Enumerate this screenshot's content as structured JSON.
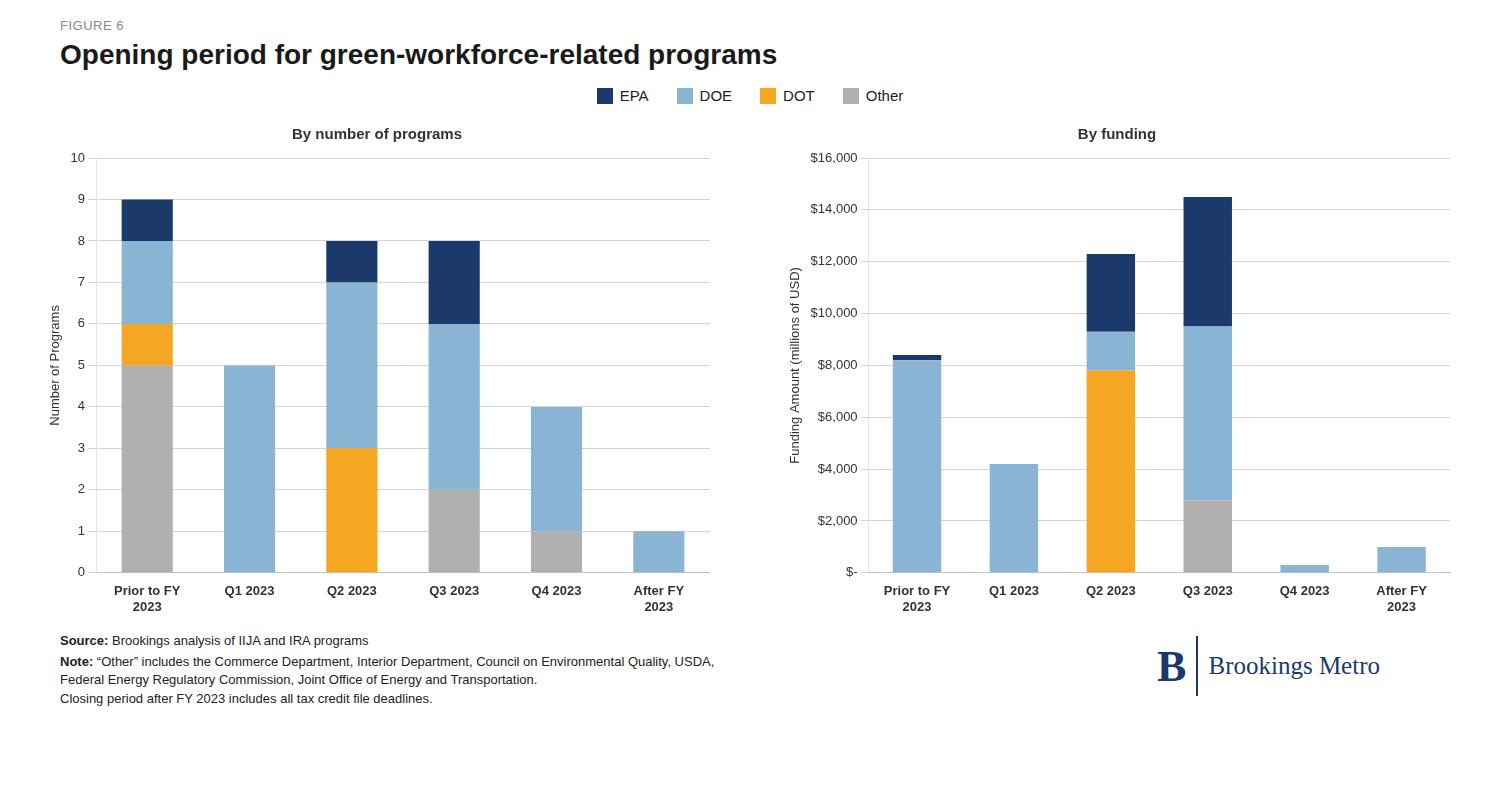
{
  "title": "Opening period for green-workforce-related programs",
  "annotations": [
    "FIGURE 6",
    "Source: Brookings analysis of IIJA and IRA programs",
    "Note: “Other” includes the Commerce Department, Interior Department, Council on Environmental Quality, USDA,\nFederal Energy Regulatory Commission, Joint Office of Energy and Transportation.\nClosing period after FY 2023 includes all tax credit file deadlines.",
    "B",
    "Brookings Metro"
  ],
  "legend": "top",
  "chart_data": [
    {
      "type": "bar",
      "title": "By number of programs",
      "categories": [
        "Prior to FY\n2023",
        "Q1 2023",
        "Q2 2023",
        "Q3 2023",
        "Q4 2023",
        "After FY\n2023"
      ],
      "series": [
        {
          "name": "Other",
          "color": "#b0b0b0",
          "values": [
            5,
            0,
            0,
            2,
            1,
            0
          ]
        },
        {
          "name": "DOT",
          "color": "#f5a623",
          "values": [
            1,
            0,
            3,
            0,
            0,
            0
          ]
        },
        {
          "name": "DOE",
          "color": "#8ab4d4",
          "values": [
            2,
            5,
            4,
            4,
            3,
            1
          ]
        },
        {
          "name": "EPA",
          "color": "#1b3a6b",
          "values": [
            1,
            0,
            1,
            2,
            0,
            0
          ]
        }
      ],
      "y_label": "Number of Programs",
      "ylim": [
        0,
        10
      ],
      "yticks": [
        0,
        1,
        2,
        3,
        4,
        5,
        6,
        7,
        8,
        9,
        10
      ],
      "stacked": true,
      "grid": true
    },
    {
      "type": "bar",
      "title": "By funding",
      "categories": [
        "Prior to FY\n2023",
        "Q1 2023",
        "Q2 2023",
        "Q3 2023",
        "Q4 2023",
        "After FY\n2023"
      ],
      "series": [
        {
          "name": "Other",
          "color": "#b0b0b0",
          "values": [
            0,
            0,
            0,
            2800,
            0,
            0
          ]
        },
        {
          "name": "DOT",
          "color": "#f5a623",
          "values": [
            0,
            0,
            7800,
            0,
            0,
            0
          ]
        },
        {
          "name": "DOE",
          "color": "#8ab4d4",
          "values": [
            8200,
            4200,
            1500,
            6700,
            300,
            1000
          ]
        },
        {
          "name": "EPA",
          "color": "#1b3a6b",
          "values": [
            200,
            0,
            3000,
            5000,
            0,
            0
          ]
        }
      ],
      "y_label": "Funding Amount (millions of USD)",
      "ylim": [
        0,
        16000
      ],
      "yticks": [
        {
          "value": 0,
          "label": "$-"
        },
        {
          "value": 2000,
          "label": "$2,000"
        },
        {
          "value": 4000,
          "label": "$4,000"
        },
        {
          "value": 6000,
          "label": "$6,000"
        },
        {
          "value": 8000,
          "label": "$8,000"
        },
        {
          "value": 10000,
          "label": "$10,000"
        },
        {
          "value": 12000,
          "label": "$12,000"
        },
        {
          "value": 14000,
          "label": "$14,000"
        },
        {
          "value": 16000,
          "label": "$16,000"
        }
      ],
      "stacked": true,
      "grid": true
    }
  ]
}
